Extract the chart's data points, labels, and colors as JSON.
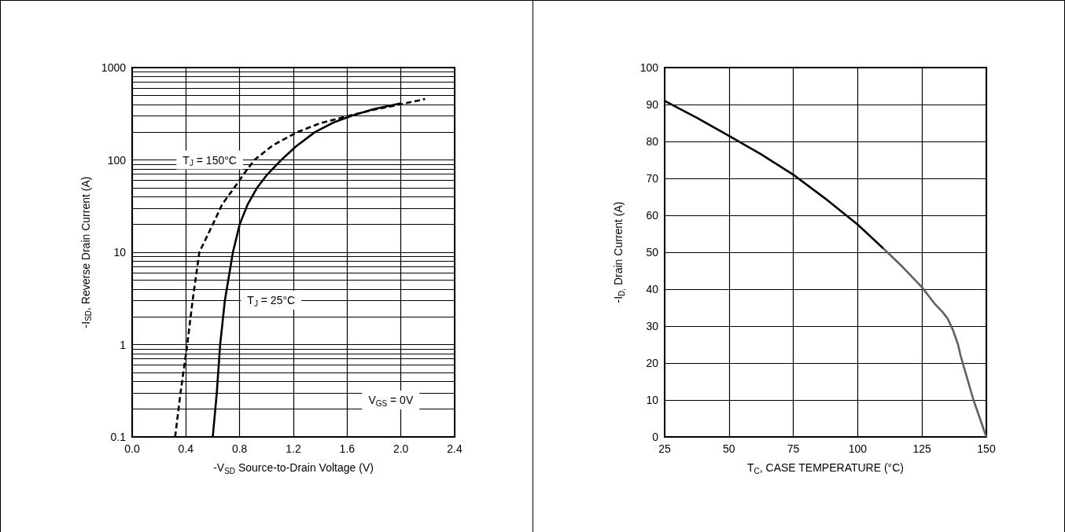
{
  "chart_data": [
    {
      "type": "line",
      "xlabel": "-V$_{SD}$ Source-to-Drain Voltage (V)",
      "ylabel": "-I$_{SD}$, Reverse Drain Current (A)",
      "log": "y",
      "grid": true,
      "marker": "none",
      "xlim": [
        0,
        2.4
      ],
      "xticks": [
        {
          "value": 0,
          "label": "0.0"
        },
        0.4,
        0.8,
        1.2,
        1.6,
        {
          "value": 2,
          "label": "2.0"
        },
        2.4
      ],
      "ylim": [
        0.1,
        1000
      ],
      "yticks": [
        0.1,
        1,
        10,
        100,
        1000
      ],
      "series": [
        {
          "color": "#000000",
          "line_style": "solid",
          "x": [
            0.6,
            0.63,
            0.655,
            0.69,
            0.75,
            0.8,
            0.86,
            0.93,
            1.0,
            1.11,
            1.22,
            1.36,
            1.5,
            1.63,
            1.8,
            2.0
          ],
          "values": [
            0.1,
            0.3,
            1,
            3,
            10,
            20,
            33,
            50,
            68,
            100,
            140,
            200,
            255,
            300,
            355,
            410
          ]
        },
        {
          "color": "#000000",
          "line_style": "dashed",
          "x": [
            0.32,
            0.36,
            0.41,
            0.45,
            0.5,
            0.6,
            0.67,
            0.76,
            0.83,
            0.91,
            1.05,
            1.23,
            1.4,
            1.61,
            1.8,
            2.0,
            2.18
          ],
          "values": [
            0.1,
            0.3,
            1,
            3,
            10,
            20,
            33,
            50,
            70,
            100,
            145,
            200,
            250,
            300,
            350,
            400,
            457
          ]
        }
      ],
      "annotations": [
        "T$_{J}$ = 150°C",
        "T$_{J}$ = 25°C",
        "V$_{GS}$ = 0V"
      ]
    },
    {
      "type": "line",
      "xlabel": "T$_{C}$, CASE TEMPERATURE (°C)",
      "ylabel": "-I$_{D,}$ Drain Current (A)",
      "grid": true,
      "marker": "none",
      "xlim": [
        25,
        150
      ],
      "xticks": [
        25,
        50,
        75,
        100,
        125,
        150
      ],
      "ylim": [
        0,
        100
      ],
      "yticks": [
        0,
        10,
        20,
        30,
        40,
        50,
        60,
        70,
        80,
        90,
        100
      ],
      "series": [
        {
          "color": "#000000",
          "x": [
            25,
            37.5,
            50,
            62.5,
            75,
            87.5,
            100,
            110
          ],
          "values": [
            91,
            86.4,
            81.5,
            76.5,
            71,
            64.5,
            57.5,
            51
          ]
        },
        {
          "color": "#606060",
          "x": [
            110,
            117.5,
            125,
            130,
            133,
            135,
            137,
            139,
            140,
            142.5,
            145,
            147.5,
            150
          ],
          "values": [
            51,
            46,
            40.5,
            36,
            33.8,
            32,
            29,
            25,
            22,
            16,
            10,
            5,
            0
          ]
        }
      ]
    }
  ]
}
